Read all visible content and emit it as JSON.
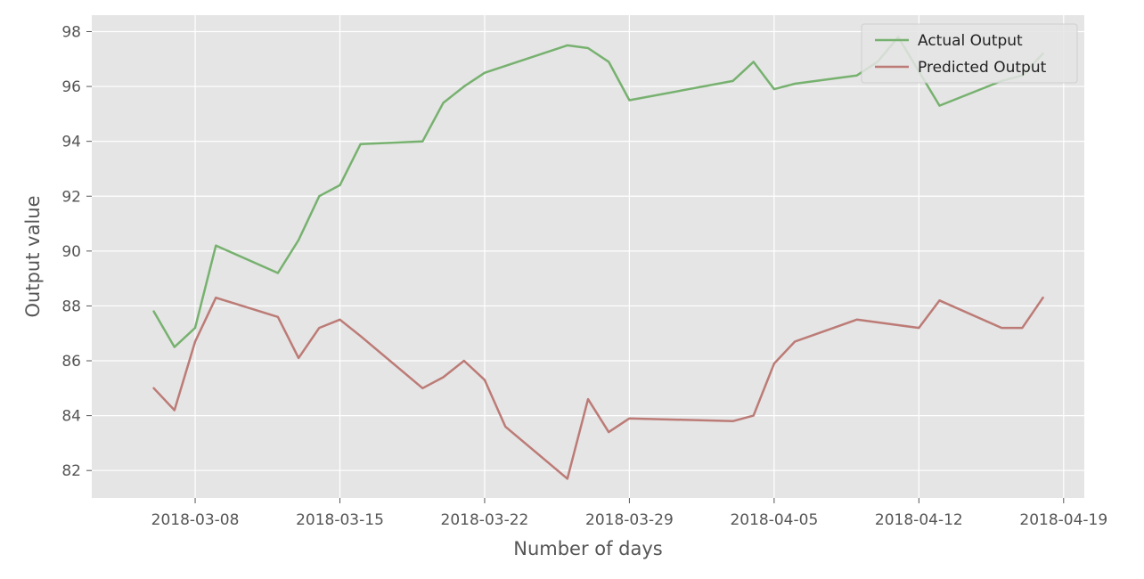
{
  "chart_data": {
    "type": "line",
    "xlabel": "Number of days",
    "ylabel": "Output value",
    "x_axis_type": "date",
    "xlim": [
      "2018-03-03",
      "2018-04-20"
    ],
    "ylim": [
      81,
      98.6
    ],
    "x_ticks": [
      "2018-03-08",
      "2018-03-15",
      "2018-03-22",
      "2018-03-29",
      "2018-04-05",
      "2018-04-12",
      "2018-04-19"
    ],
    "y_ticks": [
      82,
      84,
      86,
      88,
      90,
      92,
      94,
      96,
      98
    ],
    "grid": true,
    "legend_position": "top-right",
    "style": {
      "background": "#e5e5e5",
      "grid_color": "#ffffff",
      "tick_color": "#555555"
    },
    "series": [
      {
        "name": "Actual Output",
        "color": "#77b16f",
        "x": [
          "2018-03-06",
          "2018-03-07",
          "2018-03-08",
          "2018-03-09",
          "2018-03-12",
          "2018-03-13",
          "2018-03-14",
          "2018-03-15",
          "2018-03-16",
          "2018-03-19",
          "2018-03-20",
          "2018-03-21",
          "2018-03-22",
          "2018-03-26",
          "2018-03-27",
          "2018-03-28",
          "2018-03-29",
          "2018-04-03",
          "2018-04-04",
          "2018-04-05",
          "2018-04-06",
          "2018-04-09",
          "2018-04-10",
          "2018-04-11",
          "2018-04-13",
          "2018-04-16",
          "2018-04-17",
          "2018-04-18"
        ],
        "values": [
          87.8,
          86.5,
          87.2,
          90.2,
          89.2,
          90.4,
          92.0,
          92.4,
          93.9,
          94.0,
          95.4,
          96.0,
          96.5,
          97.5,
          97.4,
          96.9,
          95.5,
          96.2,
          96.9,
          95.9,
          96.1,
          96.4,
          96.9,
          97.8,
          95.3,
          96.2,
          96.4,
          97.2
        ]
      },
      {
        "name": "Predicted Output",
        "color": "#bc7b76",
        "x": [
          "2018-03-06",
          "2018-03-07",
          "2018-03-08",
          "2018-03-09",
          "2018-03-12",
          "2018-03-13",
          "2018-03-14",
          "2018-03-15",
          "2018-03-16",
          "2018-03-19",
          "2018-03-20",
          "2018-03-21",
          "2018-03-22",
          "2018-03-23",
          "2018-03-26",
          "2018-03-27",
          "2018-03-28",
          "2018-03-29",
          "2018-04-03",
          "2018-04-04",
          "2018-04-05",
          "2018-04-06",
          "2018-04-09",
          "2018-04-10",
          "2018-04-11",
          "2018-04-12",
          "2018-04-13",
          "2018-04-16",
          "2018-04-17",
          "2018-04-18"
        ],
        "values": [
          85.0,
          84.2,
          86.7,
          88.3,
          87.6,
          86.1,
          87.2,
          87.5,
          86.9,
          85.0,
          85.4,
          86.0,
          85.3,
          83.6,
          81.7,
          84.6,
          83.4,
          83.9,
          83.8,
          84.0,
          85.9,
          86.7,
          87.5,
          87.4,
          87.3,
          87.2,
          88.2,
          87.2,
          87.2,
          88.3
        ]
      }
    ]
  }
}
